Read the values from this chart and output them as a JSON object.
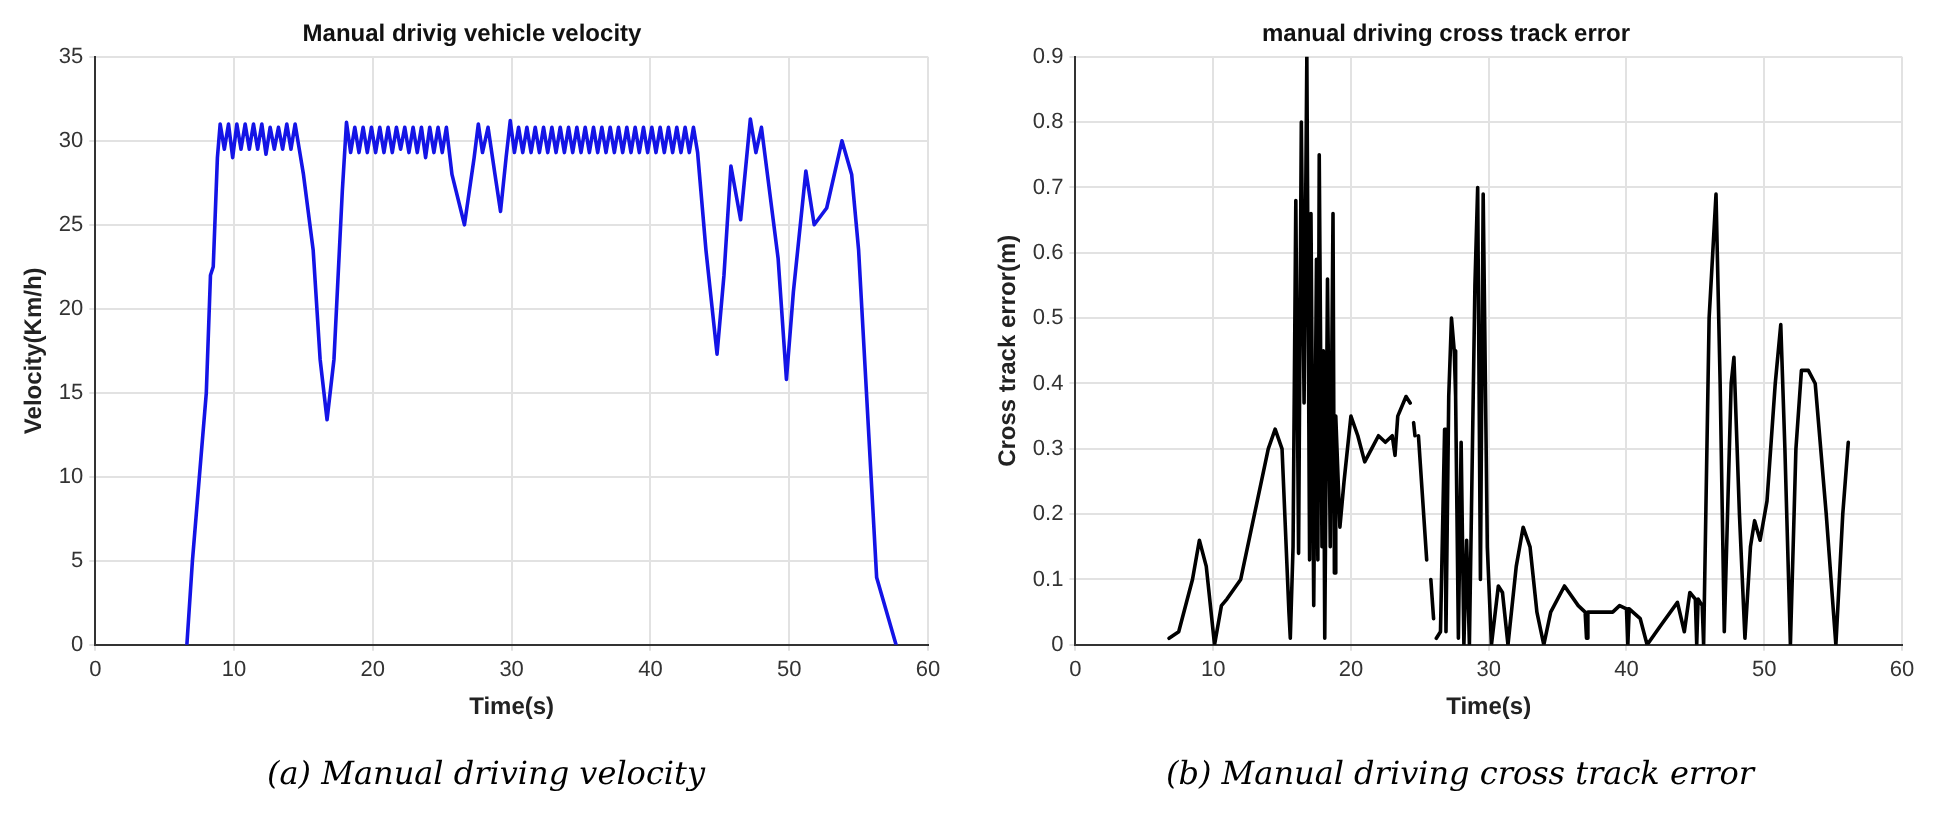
{
  "chart_data": [
    {
      "type": "line",
      "title": "Manual drivig vehicle velocity",
      "xlabel": "Time(s)",
      "ylabel": "Velocity(Km/h)",
      "annotations": [
        "(a) Manual driving velocity"
      ],
      "xlim": [
        0,
        60
      ],
      "xticks": [
        0,
        10,
        20,
        30,
        40,
        50,
        60
      ],
      "ylim": [
        0,
        35
      ],
      "yticks": [
        0,
        5,
        10,
        15,
        20,
        25,
        30,
        35
      ],
      "grid": true,
      "legend": false,
      "marker": "none",
      "line_style": "solid",
      "x": [
        6.6,
        7,
        8,
        8.3,
        8.5,
        8.8,
        9,
        9.3,
        9.6,
        9.9,
        10.2,
        10.5,
        10.8,
        11.1,
        11.4,
        11.7,
        12,
        12.3,
        12.6,
        12.9,
        13.2,
        13.5,
        13.8,
        14.1,
        14.4,
        14.7,
        15,
        15.7,
        16.2,
        16.7,
        17.2,
        17.5,
        17.8,
        18.1,
        18.4,
        18.7,
        19,
        19.3,
        19.6,
        19.9,
        20.2,
        20.5,
        20.8,
        21.1,
        21.4,
        21.7,
        22,
        22.3,
        22.6,
        22.9,
        23.2,
        23.5,
        23.8,
        24.1,
        24.4,
        24.7,
        25,
        25.3,
        25.7,
        26.6,
        27.3,
        27.6,
        27.9,
        28.3,
        28.8,
        29.2,
        29.6,
        29.9,
        30.2,
        30.5,
        30.8,
        31.1,
        31.4,
        31.7,
        32,
        32.3,
        32.6,
        32.9,
        33.2,
        33.5,
        33.8,
        34.1,
        34.4,
        34.7,
        35,
        35.3,
        35.6,
        35.9,
        36.2,
        36.5,
        36.8,
        37.1,
        37.4,
        37.7,
        38,
        38.3,
        38.6,
        38.9,
        39.2,
        39.5,
        39.8,
        40.1,
        40.4,
        40.7,
        41,
        41.3,
        41.6,
        41.9,
        42.2,
        42.5,
        42.8,
        43.1,
        43.4,
        44,
        44.8,
        45.3,
        45.8,
        46.5,
        47.2,
        47.6,
        48,
        49.2,
        49.8,
        50.3,
        51.2,
        51.8,
        52.7,
        53.8,
        54.5,
        55,
        56.3,
        57.7
      ],
      "series": [
        {
          "color": "#1414e6",
          "values": [
            0,
            5,
            15,
            22,
            22.5,
            29,
            31,
            29.5,
            31,
            29,
            31,
            29.5,
            31,
            29.5,
            31,
            29.5,
            31,
            29.2,
            30.8,
            29.5,
            30.8,
            29.5,
            31,
            29.5,
            31,
            29.5,
            28,
            23.5,
            17,
            13.4,
            17,
            22,
            27,
            31.1,
            29.3,
            30.8,
            29.3,
            30.8,
            29.3,
            30.8,
            29.3,
            30.8,
            29.3,
            30.8,
            29.3,
            30.8,
            29.5,
            30.8,
            29.3,
            30.8,
            29.3,
            30.8,
            29,
            30.8,
            29.3,
            30.8,
            29.3,
            30.8,
            28,
            25,
            29,
            31,
            29.3,
            30.8,
            28,
            25.8,
            29,
            31.2,
            29.3,
            30.8,
            29.3,
            30.8,
            29.3,
            30.8,
            29.3,
            30.8,
            29.3,
            30.8,
            29.3,
            30.8,
            29.3,
            30.8,
            29.3,
            30.8,
            29.3,
            30.8,
            29.3,
            30.8,
            29.3,
            30.8,
            29.3,
            30.8,
            29.3,
            30.8,
            29.3,
            30.8,
            29.3,
            30.8,
            29.3,
            30.8,
            29.3,
            30.8,
            29.3,
            30.8,
            29.3,
            30.8,
            29.3,
            30.8,
            29.3,
            30.8,
            29.3,
            30.8,
            29.3,
            23.5,
            17.3,
            22,
            28.5,
            25.3,
            31.3,
            29.3,
            30.8,
            23,
            15.8,
            21,
            28.2,
            25,
            26,
            30,
            28,
            23.5,
            4,
            0
          ]
        }
      ]
    },
    {
      "type": "line",
      "title": "manual driving cross track error",
      "xlabel": "Time(s)",
      "ylabel": "Cross track error(m)",
      "annotations": [
        "(b) Manual driving cross track error"
      ],
      "xlim": [
        0,
        60
      ],
      "xticks": [
        0,
        10,
        20,
        30,
        40,
        50,
        60
      ],
      "ylim": [
        0,
        0.9
      ],
      "yticks": [
        0,
        0.1,
        0.2,
        0.3,
        0.4,
        0.5,
        0.6,
        0.7,
        0.8,
        0.9
      ],
      "grid": true,
      "legend": false,
      "marker": "none",
      "line_style": "solid",
      "x": [
        6.8,
        7.5,
        8.5,
        9,
        9.5,
        10.1,
        10.6,
        11,
        12,
        13,
        14,
        14.5,
        15,
        15.5,
        15.6,
        15.8,
        16,
        16.2,
        16.4,
        16.6,
        16.8,
        17,
        17.1,
        17.3,
        17.5,
        17.6,
        17.7,
        17.9,
        18,
        18.1,
        18.3,
        18.5,
        18.7,
        18.8,
        18.9,
        19.2,
        19.5,
        20,
        20.5,
        21,
        21.5,
        22,
        22.5,
        23,
        23.2,
        23.4,
        24,
        24.3,
        24.45,
        24.55,
        24.65,
        24.75,
        24.9,
        25.5,
        25.65,
        25.8,
        26,
        26.1,
        26.2,
        26.5,
        26.8,
        26.9,
        27.1,
        27.3,
        27.5,
        27.6,
        27.8,
        28,
        28.2,
        28.4,
        28.6,
        29,
        29.2,
        29.4,
        29.6,
        29.9,
        30.2,
        30.7,
        31,
        31.4,
        32,
        32.5,
        33,
        33.5,
        34,
        34.5,
        35.5,
        36.5,
        37,
        37.1,
        37.2,
        39,
        39.5,
        40,
        40.1,
        40.2,
        41,
        41.5,
        42.5,
        43.7,
        44.2,
        44.6,
        45,
        45.1,
        45.2,
        45.5,
        45.6,
        46,
        46.5,
        46.8,
        47.1,
        47.6,
        47.8,
        48.2,
        48.6,
        49,
        49.3,
        49.7,
        50.2,
        50.8,
        51.2,
        51.5,
        51.9,
        52.3,
        52.7,
        53.2,
        53.7,
        54.5,
        55.2,
        55.7,
        56.1
      ],
      "series": [
        {
          "color": "#000000",
          "values": [
            0.01,
            0.02,
            0.1,
            0.16,
            0.12,
            0,
            0.06,
            0.07,
            0.1,
            0.2,
            0.3,
            0.33,
            0.3,
            0.05,
            0.01,
            0.15,
            0.68,
            0.14,
            0.8,
            0.37,
            0.9,
            0.13,
            0.66,
            0.06,
            0.59,
            0.13,
            0.75,
            0.15,
            0.45,
            0.01,
            0.56,
            0.15,
            0.66,
            0.11,
            0.35,
            0.18,
            0.25,
            0.35,
            0.32,
            0.28,
            0.3,
            0.32,
            0.31,
            0.32,
            0.29,
            0.35,
            0.38,
            0.37,
            null,
            0.34,
            0.32,
            null,
            0.32,
            0.13,
            null,
            0.1,
            0.04,
            null,
            0.01,
            0.02,
            0.33,
            0.02,
            0.38,
            0.5,
            0.45,
            0.38,
            0.01,
            0.31,
            0,
            0.16,
            0,
            0.55,
            0.7,
            0.1,
            0.69,
            0.15,
            0,
            0.09,
            0.08,
            0,
            0.12,
            0.18,
            0.15,
            0.05,
            0,
            0.05,
            0.09,
            0.06,
            0.05,
            0.01,
            0.05,
            0.05,
            0.06,
            0.055,
            0,
            0.055,
            0.04,
            0,
            0.03,
            0.065,
            0.02,
            0.08,
            0.07,
            0,
            0.07,
            0.06,
            0,
            0.5,
            0.69,
            0.4,
            0.02,
            0.4,
            0.44,
            0.2,
            0.01,
            0.15,
            0.19,
            0.16,
            0.22,
            0.4,
            0.49,
            0.3,
            0,
            0.3,
            0.42,
            0.42,
            0.4,
            0.2,
            0,
            0.2,
            0.31
          ]
        }
      ]
    }
  ]
}
